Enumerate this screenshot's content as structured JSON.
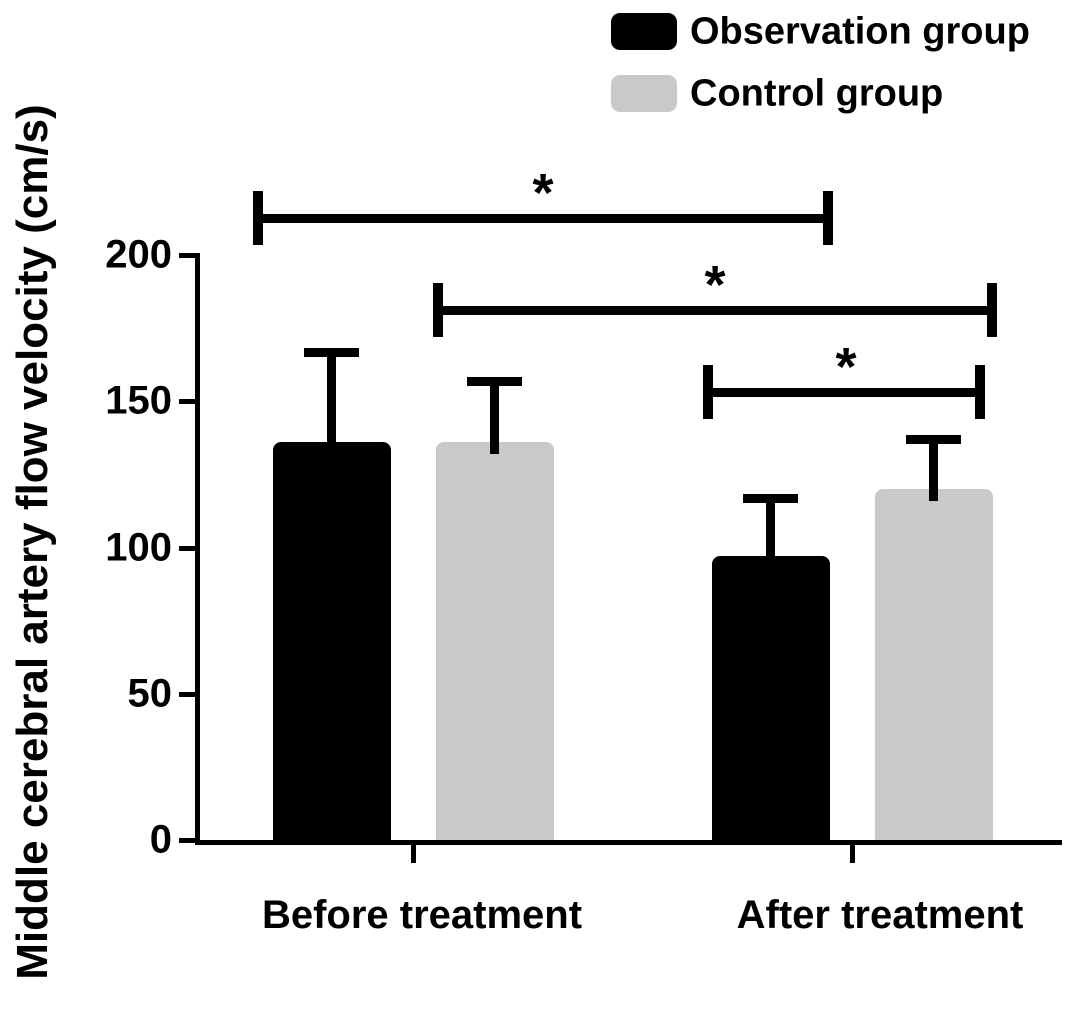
{
  "chart_data": {
    "type": "bar",
    "title": "",
    "ylabel": "Middle cerebral artery flow velocity (cm/s)",
    "xlabel": "",
    "categories": [
      "Before treatment",
      "After treatment"
    ],
    "series": [
      {
        "name": "Observation group",
        "color": "#000000",
        "values": [
          136,
          97
        ],
        "errors_sd": [
          31,
          20
        ]
      },
      {
        "name": "Control group",
        "color": "#c9c9c9",
        "values": [
          136,
          120
        ],
        "errors_sd": [
          21,
          17
        ]
      }
    ],
    "error_bar_tops": {
      "Observation group": [
        167,
        117
      ],
      "Control group": [
        157,
        137
      ]
    },
    "ylim": [
      0,
      200
    ],
    "yticks": [
      0,
      50,
      100,
      150,
      200
    ],
    "grid": false,
    "legend_position": "top-right",
    "error_bars": "upper SD whiskers with caps",
    "significance": [
      {
        "label": "*",
        "from": "Observation group / Before treatment",
        "to": "Observation group / After treatment"
      },
      {
        "label": "*",
        "from": "Control group / Before treatment",
        "to": "Control group / After treatment"
      },
      {
        "label": "*",
        "from": "Observation group / After treatment",
        "to": "Control group / After treatment"
      }
    ],
    "colors": {
      "ink": "#000000",
      "bar_black": "#000000",
      "bar_gray": "#c9c9c9",
      "background": "#ffffff"
    }
  }
}
